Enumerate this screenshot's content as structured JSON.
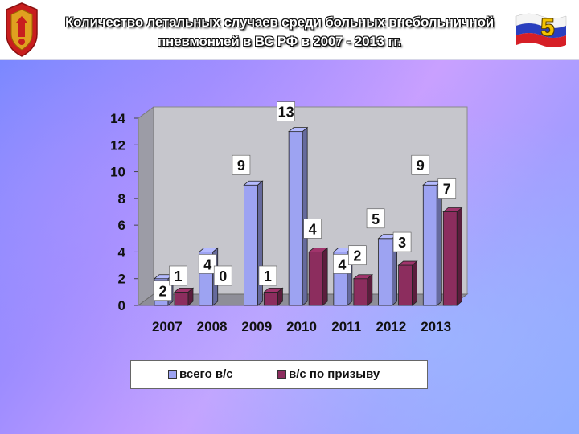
{
  "header": {
    "title_line1": "Количество летальных случаев среди больных внебольничной",
    "title_line2": "пневмонией в ВС РФ в 2007 - 2013 гг.",
    "slide_number": "5",
    "emblem_icon": "military-emblem-icon",
    "flag_icon": "russian-flag-icon"
  },
  "chart_data": {
    "type": "bar",
    "bar_style": "3d-clustered",
    "categories": [
      "2007",
      "2008",
      "2009",
      "2010",
      "2011",
      "2012",
      "2013"
    ],
    "series": [
      {
        "name": "всего в/с",
        "values": [
          2,
          4,
          9,
          13,
          4,
          5,
          9
        ],
        "color": "#9da3f2"
      },
      {
        "name": "в/с по призыву",
        "values": [
          1,
          0,
          1,
          4,
          2,
          3,
          7
        ],
        "color": "#8c2d5e"
      }
    ],
    "yticks": [
      "0",
      "2",
      "4",
      "6",
      "8",
      "10",
      "12",
      "14"
    ],
    "ylim": [
      0,
      14
    ],
    "grid": false,
    "data_labels": true,
    "legend_position": "bottom"
  }
}
